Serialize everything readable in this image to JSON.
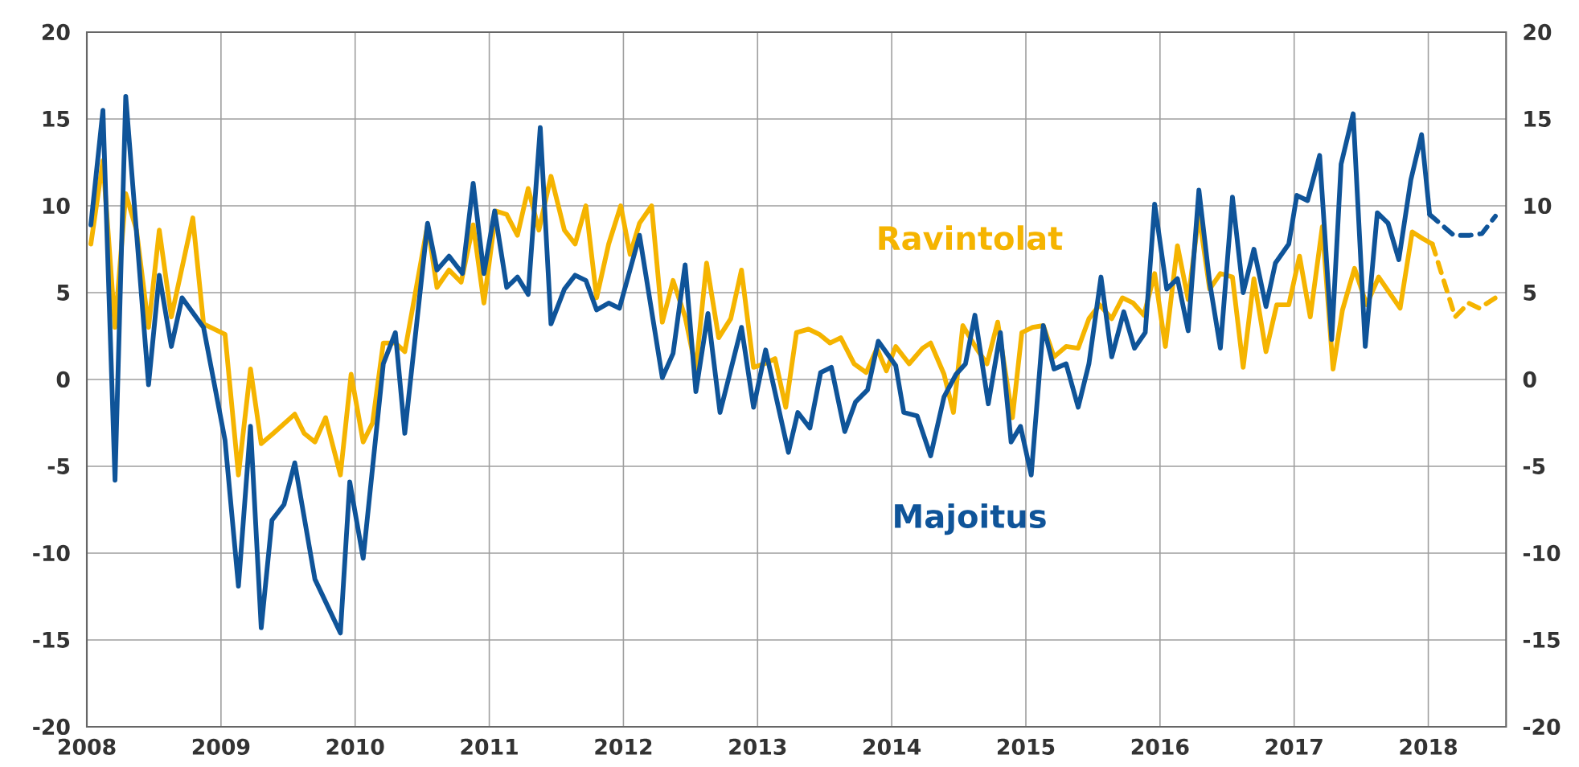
{
  "chart_data": {
    "type": "line",
    "xlim": [
      2008,
      2018.58
    ],
    "xticks": [
      2008,
      2009,
      2010,
      2011,
      2012,
      2013,
      2014,
      2015,
      2016,
      2017,
      2018
    ],
    "ylim": [
      -20,
      20
    ],
    "yticks": [
      -20,
      -15,
      -10,
      -5,
      0,
      5,
      10,
      15,
      20
    ],
    "y2lim": [
      -20,
      20
    ],
    "y2ticks": [
      -20,
      -15,
      -10,
      -5,
      0,
      5,
      10,
      15,
      20
    ],
    "grid": true,
    "series": [
      {
        "name": "Ravintolat",
        "color": "#f5b400",
        "line_style": "solid",
        "x": [
          2008.03,
          2008.12,
          2008.21,
          2008.29,
          2008.37,
          2008.46,
          2008.54,
          2008.63,
          2008.79,
          2008.87,
          2009.03,
          2009.13,
          2009.22,
          2009.3,
          2009.39,
          2009.55,
          2009.62,
          2009.7,
          2009.78,
          2009.89,
          2009.97,
          2010.06,
          2010.13,
          2010.21,
          2010.3,
          2010.37,
          2010.54,
          2010.61,
          2010.7,
          2010.79,
          2010.88,
          2010.96,
          2011.05,
          2011.13,
          2011.21,
          2011.29,
          2011.37,
          2011.46,
          2011.56,
          2011.64,
          2011.72,
          2011.8,
          2011.89,
          2011.98,
          2012.05,
          2012.12,
          2012.21,
          2012.29,
          2012.37,
          2012.46,
          2012.54,
          2012.62,
          2012.71,
          2012.8,
          2012.88,
          2012.97,
          2013.05,
          2013.13,
          2013.21,
          2013.29,
          2013.38,
          2013.46,
          2013.54,
          2013.62,
          2013.72,
          2013.81,
          2013.89,
          2013.96,
          2014.03,
          2014.13,
          2014.23,
          2014.29,
          2014.39,
          2014.46,
          2014.53,
          2014.63,
          2014.71,
          2014.79,
          2014.9,
          2014.97,
          2015.05,
          2015.13,
          2015.21,
          2015.3,
          2015.39,
          2015.47,
          2015.55,
          2015.64,
          2015.72,
          2015.8,
          2015.88,
          2015.96,
          2016.04,
          2016.13,
          2016.21,
          2016.29,
          2016.37,
          2016.45,
          2016.54,
          2016.62,
          2016.7,
          2016.79,
          2016.87,
          2016.96,
          2017.04,
          2017.12,
          2017.21,
          2017.29,
          2017.36,
          2017.45,
          2017.54,
          2017.63,
          2017.71,
          2017.79,
          2017.88,
          2017.96,
          2018.03
        ],
        "values": [
          7.8,
          12.6,
          3.0,
          10.7,
          8.6,
          3.0,
          8.6,
          3.6,
          9.3,
          3.2,
          2.6,
          -5.5,
          0.6,
          -3.7,
          -3.1,
          -2.0,
          -3.1,
          -3.6,
          -2.2,
          -5.5,
          0.3,
          -3.6,
          -2.5,
          2.1,
          2.1,
          1.6,
          8.9,
          5.3,
          6.3,
          5.6,
          8.9,
          4.4,
          9.7,
          9.5,
          8.3,
          11.0,
          8.6,
          11.7,
          8.6,
          7.8,
          10.0,
          4.7,
          7.8,
          10.0,
          7.2,
          9.0,
          10.0,
          3.3,
          5.7,
          3.6,
          0.6,
          6.7,
          2.4,
          3.5,
          6.3,
          0.7,
          0.9,
          1.2,
          -1.6,
          2.7,
          2.9,
          2.6,
          2.1,
          2.4,
          0.9,
          0.4,
          1.8,
          0.5,
          1.9,
          0.9,
          1.8,
          2.1,
          0.3,
          -1.9,
          3.1,
          1.8,
          0.9,
          3.3,
          -2.2,
          2.7,
          3.0,
          3.1,
          1.3,
          1.9,
          1.8,
          3.5,
          4.3,
          3.5,
          4.7,
          4.4,
          3.7,
          6.1,
          1.9,
          7.7,
          4.6,
          9.5,
          5.2,
          6.1,
          5.9,
          0.7,
          5.8,
          1.6,
          4.3,
          4.3,
          7.1,
          3.6,
          8.8,
          0.6,
          4.0,
          6.4,
          4.3,
          5.9,
          5.0,
          4.1,
          8.5,
          8.1,
          7.8
        ]
      },
      {
        "color": "#f5b400",
        "line_style": "dashed",
        "x": [
          2018.03,
          2018.2,
          2018.3,
          2018.38,
          2018.5
        ],
        "values": [
          7.8,
          3.6,
          4.4,
          4.1,
          4.7
        ]
      },
      {
        "name": "Majoitus",
        "color": "#0f5499",
        "line_style": "solid",
        "x": [
          2008.03,
          2008.12,
          2008.21,
          2008.29,
          2008.46,
          2008.54,
          2008.63,
          2008.71,
          2008.87,
          2009.03,
          2009.13,
          2009.22,
          2009.3,
          2009.38,
          2009.47,
          2009.55,
          2009.7,
          2009.89,
          2009.96,
          2010.06,
          2010.21,
          2010.3,
          2010.37,
          2010.54,
          2010.61,
          2010.7,
          2010.8,
          2010.88,
          2010.96,
          2011.04,
          2011.13,
          2011.21,
          2011.29,
          2011.38,
          2011.46,
          2011.56,
          2011.64,
          2011.72,
          2011.8,
          2011.89,
          2011.97,
          2012.12,
          2012.29,
          2012.37,
          2012.46,
          2012.54,
          2012.63,
          2012.72,
          2012.88,
          2012.97,
          2013.06,
          2013.23,
          2013.3,
          2013.39,
          2013.47,
          2013.55,
          2013.65,
          2013.73,
          2013.82,
          2013.9,
          2014.03,
          2014.09,
          2014.19,
          2014.29,
          2014.39,
          2014.48,
          2014.55,
          2014.62,
          2014.72,
          2014.81,
          2014.89,
          2014.96,
          2015.04,
          2015.13,
          2015.21,
          2015.3,
          2015.39,
          2015.47,
          2015.56,
          2015.64,
          2015.73,
          2015.81,
          2015.89,
          2015.96,
          2016.05,
          2016.13,
          2016.21,
          2016.29,
          2016.37,
          2016.45,
          2016.54,
          2016.62,
          2016.7,
          2016.79,
          2016.86,
          2016.96,
          2017.02,
          2017.1,
          2017.19,
          2017.28,
          2017.35,
          2017.44,
          2017.53,
          2017.62,
          2017.7,
          2017.78,
          2017.87,
          2017.95,
          2018.01
        ],
        "values": [
          8.9,
          15.5,
          -5.8,
          16.3,
          -0.3,
          6.0,
          1.9,
          4.7,
          3.0,
          -3.5,
          -11.9,
          -2.7,
          -14.3,
          -8.1,
          -7.2,
          -4.8,
          -11.5,
          -14.6,
          -5.9,
          -10.3,
          0.9,
          2.7,
          -3.1,
          9.0,
          6.3,
          7.1,
          6.1,
          11.3,
          6.1,
          9.7,
          5.3,
          5.9,
          4.9,
          14.5,
          3.2,
          5.2,
          6.0,
          5.7,
          4.0,
          4.4,
          4.1,
          8.3,
          0.1,
          1.5,
          6.6,
          -0.7,
          3.8,
          -1.9,
          3.0,
          -1.6,
          1.7,
          -4.2,
          -1.9,
          -2.8,
          0.4,
          0.7,
          -3.0,
          -1.3,
          -0.6,
          2.2,
          0.8,
          -1.9,
          -2.1,
          -4.4,
          -1.0,
          0.3,
          0.9,
          3.7,
          -1.4,
          2.7,
          -3.6,
          -2.7,
          -5.5,
          3.1,
          0.6,
          0.9,
          -1.6,
          0.9,
          5.9,
          1.3,
          3.9,
          1.8,
          2.7,
          10.1,
          5.2,
          5.8,
          2.8,
          10.9,
          5.6,
          1.8,
          10.5,
          5.0,
          7.5,
          4.2,
          6.7,
          7.8,
          10.6,
          10.3,
          12.9,
          2.3,
          12.4,
          15.3,
          1.9,
          9.6,
          9.0,
          6.9,
          11.5,
          14.1,
          9.5
        ]
      },
      {
        "color": "#0f5499",
        "line_style": "dashed",
        "x": [
          2018.01,
          2018.19,
          2018.31,
          2018.4,
          2018.5
        ],
        "values": [
          9.5,
          8.3,
          8.3,
          8.4,
          9.4
        ]
      }
    ]
  }
}
